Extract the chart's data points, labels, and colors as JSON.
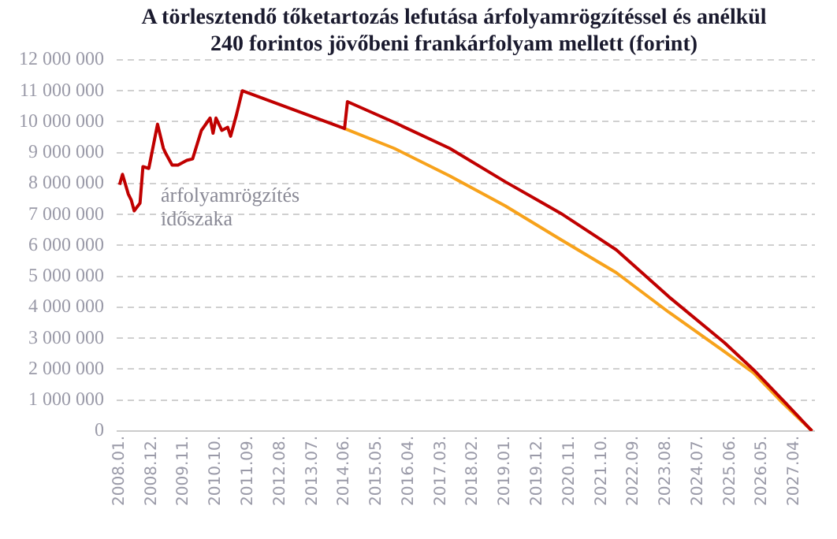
{
  "chart_data": {
    "type": "line",
    "title": "A törlesztendő tőketartozás lefutása árfolyamrögzítéssel és anélkül 240 forintos jövőbeni frankárfolyam mellett (forint)",
    "annotations": [
      "árfolyamrögzítés\nidőszaka"
    ],
    "series": [
      {
        "color": "#c00000",
        "x": [
          "2008-01",
          "2008-02",
          "2008-04",
          "2008-05",
          "2008-06",
          "2008-08",
          "2008-09",
          "2008-11",
          "2009-02",
          "2009-04",
          "2009-05",
          "2009-07",
          "2009-09",
          "2009-12",
          "2010-02",
          "2010-05",
          "2010-08",
          "2010-09",
          "2010-10",
          "2010-12",
          "2011-02",
          "2011-03",
          "2011-05",
          "2011-07",
          "2014-06",
          "2014-07",
          "2015-11",
          "2017-06",
          "2019-01",
          "2020-08",
          "2022-03",
          "2023-09",
          "2025-04",
          "2026-02",
          "2026-11",
          "2027-10"
        ],
        "values": [
          7960000,
          8300000,
          7660000,
          7470000,
          7120000,
          7370000,
          8550000,
          8490000,
          9920000,
          9140000,
          8940000,
          8600000,
          8600000,
          8750000,
          8800000,
          9720000,
          10120000,
          9630000,
          10120000,
          9720000,
          9820000,
          9530000,
          10220000,
          11000000,
          9780000,
          10650000,
          9980000,
          9140000,
          8060000,
          7040000,
          5860000,
          4340000,
          2860000,
          1980000,
          1100000,
          0
        ]
      },
      {
        "color": "#f7a21b",
        "x": [
          "2014-06",
          "2015-11",
          "2017-06",
          "2019-01",
          "2020-08",
          "2022-03",
          "2023-09",
          "2025-04",
          "2026-02",
          "2026-11",
          "2027-10"
        ],
        "values": [
          9780000,
          9140000,
          8250000,
          7280000,
          6190000,
          5120000,
          3840000,
          2570000,
          1880000,
          1000000,
          0
        ]
      }
    ],
    "xlim": [
      "2007-12",
      "2027-11"
    ],
    "xticks": [
      {
        "value": "2008-01",
        "label": "2008.01."
      },
      {
        "value": "2008-12",
        "label": "2008.12."
      },
      {
        "value": "2009-11",
        "label": "2009.11."
      },
      {
        "value": "2010-10",
        "label": "2010.10."
      },
      {
        "value": "2011-09",
        "label": "2011.09."
      },
      {
        "value": "2012-08",
        "label": "2012.08."
      },
      {
        "value": "2013-07",
        "label": "2013.07."
      },
      {
        "value": "2014-06",
        "label": "2014.06."
      },
      {
        "value": "2015-05",
        "label": "2015.05."
      },
      {
        "value": "2016-04",
        "label": "2016.04."
      },
      {
        "value": "2017-03",
        "label": "2017.03."
      },
      {
        "value": "2018-02",
        "label": "2018.02."
      },
      {
        "value": "2019-01",
        "label": "2019.01."
      },
      {
        "value": "2019-12",
        "label": "2019.12."
      },
      {
        "value": "2020-11",
        "label": "2020.11."
      },
      {
        "value": "2021-10",
        "label": "2021.10."
      },
      {
        "value": "2022-09",
        "label": "2022.09."
      },
      {
        "value": "2023-08",
        "label": "2023.08."
      },
      {
        "value": "2024-07",
        "label": "2024.07."
      },
      {
        "value": "2025-06",
        "label": "2025.06."
      },
      {
        "value": "2026-05",
        "label": "2026.05."
      },
      {
        "value": "2027-04",
        "label": "2027.04."
      }
    ],
    "ylim": [
      0,
      12000000
    ],
    "yticks": [
      0,
      {
        "value": 1000000,
        "label": "1 000 000"
      },
      {
        "value": 2000000,
        "label": "2 000 000"
      },
      {
        "value": 3000000,
        "label": "3 000 000"
      },
      {
        "value": 4000000,
        "label": "4 000 000"
      },
      {
        "value": 5000000,
        "label": "5 000 000"
      },
      {
        "value": 6000000,
        "label": "6 000 000"
      },
      {
        "value": 7000000,
        "label": "7 000 000"
      },
      {
        "value": 8000000,
        "label": "8 000 000"
      },
      {
        "value": 9000000,
        "label": "9 000 000"
      },
      {
        "value": 10000000,
        "label": "10 000 000"
      },
      {
        "value": 11000000,
        "label": "11 000 000"
      },
      {
        "value": 12000000,
        "label": "12 000 000"
      }
    ],
    "grid": "y",
    "legend": false,
    "marker": "none",
    "line_style": "solid"
  }
}
